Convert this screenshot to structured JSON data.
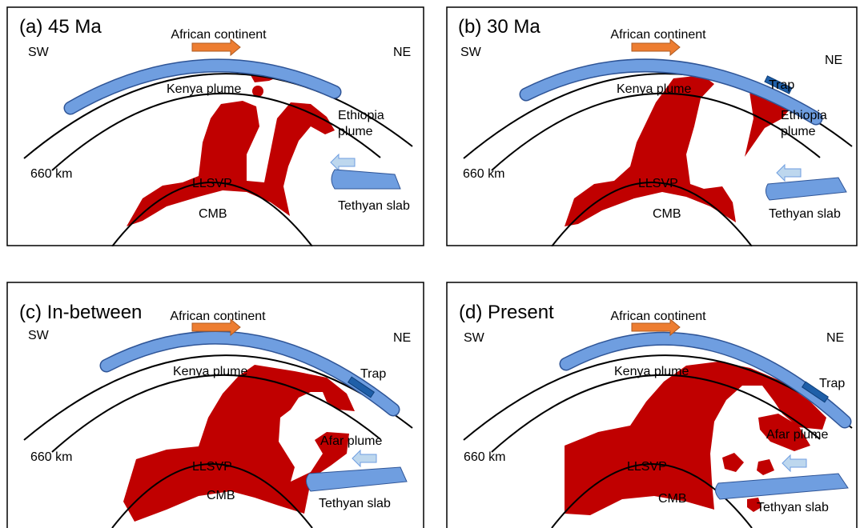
{
  "panels": [
    {
      "title": "(a) 45 Ma",
      "continent": "African continent",
      "sw": "SW",
      "ne": "NE",
      "kenya_plume": "Kenya plume",
      "ethiopia_plume": [
        "Ethiopia",
        "plume"
      ],
      "depth": "660 km",
      "llsvp": "LLSVP",
      "cmb": "CMB",
      "slab": "Tethyan slab"
    },
    {
      "title": "(b) 30 Ma",
      "continent": "African continent",
      "sw": "SW",
      "ne": "NE",
      "trap": "Trap",
      "kenya_plume": "Kenya plume",
      "ethiopia_plume": [
        "Ethiopia",
        "plume"
      ],
      "depth": "660 km",
      "llsvp": "LLSVP",
      "cmb": "CMB",
      "slab": "Tethyan slab"
    },
    {
      "title": "(c) In-between",
      "continent": "African continent",
      "sw": "SW",
      "ne": "NE",
      "kenya_plume": "Kenya plume",
      "trap": "Trap",
      "depth": "660 km",
      "afar_plume": "Afar plume",
      "llsvp": "LLSVP",
      "cmb": "CMB",
      "slab": "Tethyan slab"
    },
    {
      "title": "(d) Present",
      "continent": "African continent",
      "sw": "SW",
      "ne": "NE",
      "kenya_plume": "Kenya plume",
      "trap": "Trap",
      "afar_plume": "Afar plume",
      "depth": "660 km",
      "llsvp": "LLSVP",
      "cmb": "CMB",
      "slab": "Tethyan slab"
    }
  ]
}
